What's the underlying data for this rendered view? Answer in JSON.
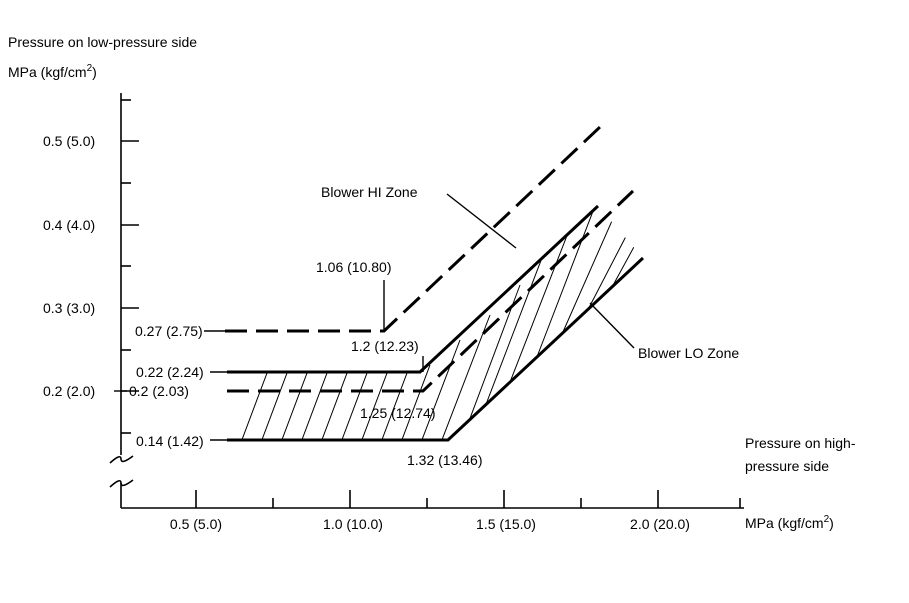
{
  "title_line1": "Pressure on low-pressure side",
  "y_unit": "MPa (kgf/cm",
  "y_unit_sup": "2",
  "y_unit_close": ")",
  "x_title_line1": "Pressure on high-",
  "x_title_line2": "pressure side",
  "x_unit": "MPa (kgf/cm",
  "x_unit_sup": "2",
  "x_unit_close": ")",
  "y_ticks": [
    "0.5 (5.0)",
    "0.4 (4.0)",
    "0.3 (3.0)",
    "0.2 (2.0)"
  ],
  "x_ticks": [
    "0.5 (5.0)",
    "1.0 (10.0)",
    "1.5 (15.0)",
    "2.0 (20.0)"
  ],
  "zones": {
    "hi": "Blower HI Zone",
    "lo": "Blower LO Zone"
  },
  "annotations": {
    "a_027": "0.27 (2.75)",
    "a_022": "0.22 (2.24)",
    "a_020": "0.2 (2.03)",
    "a_014": "0.14 (1.42)",
    "a_106": "1.06 (10.80)",
    "a_12": "1.2 (12.23)",
    "a_125": "1.25 (12.74)",
    "a_132": "1.32 (13.46)"
  }
}
